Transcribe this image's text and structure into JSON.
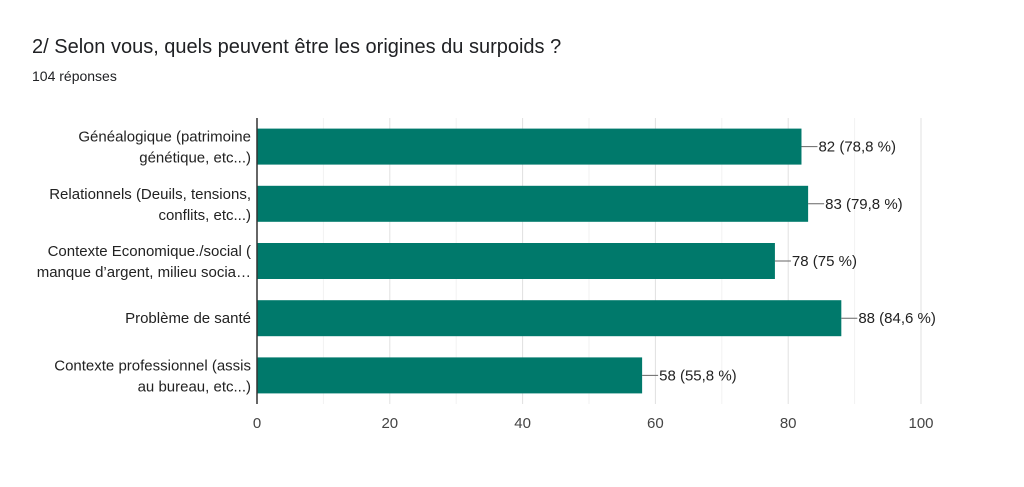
{
  "header": {
    "title": "2/ Selon vous, quels peuvent être les origines du surpoids ?",
    "responses": "104 réponses"
  },
  "colors": {
    "bar": "#00796b",
    "grid": "#e0e0e0",
    "axis": "#333333"
  },
  "chart_data": {
    "type": "bar",
    "orientation": "horizontal",
    "title": "2/ Selon vous, quels peuvent être les origines du surpoids ?",
    "categories": [
      [
        "Généalogique (patrimoine",
        "génétique, etc...)"
      ],
      [
        "Relationnels (Deuils, tensions,",
        "conflits, etc...)"
      ],
      [
        "Contexte Economique./social (",
        "manque d’argent, milieu socia…"
      ],
      [
        "Problème de santé"
      ],
      [
        "Contexte professionnel (assis",
        "au bureau, etc...)"
      ]
    ],
    "values": [
      82,
      83,
      78,
      88,
      58
    ],
    "data_labels": [
      "82 (78,8 %)",
      "83 (79,8 %)",
      "78 (75 %)",
      "88 (84,6 %)",
      "58 (55,8 %)"
    ],
    "xlim": [
      0,
      100
    ],
    "xticks": [
      0,
      20,
      40,
      60,
      80,
      100
    ],
    "grid": true,
    "legend": "none"
  }
}
